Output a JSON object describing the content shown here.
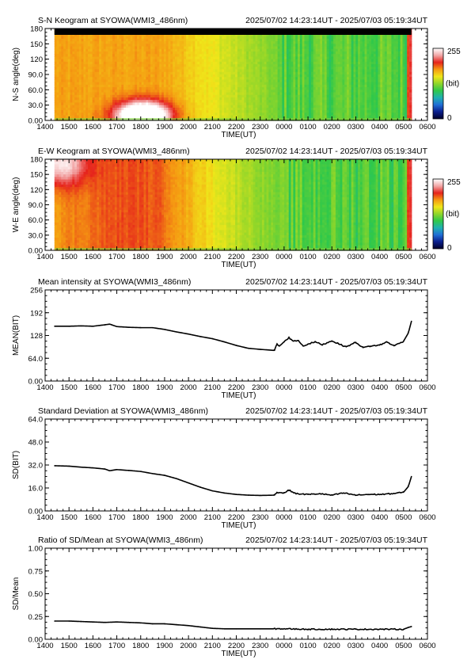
{
  "colors": {
    "background": "#ffffff",
    "axis": "#000000",
    "line": "#000000",
    "colormap": [
      "#00002a",
      "#0a1d8c",
      "#1f6ed6",
      "#1fb0b0",
      "#2fc84a",
      "#8fd62a",
      "#f0e61a",
      "#f59a12",
      "#e6231c",
      "#f2a6a6",
      "#ffffff"
    ]
  },
  "time_axis": {
    "xlabel": "TIME(UT)",
    "ticks": [
      "1400",
      "1500",
      "1600",
      "1700",
      "1800",
      "1900",
      "2000",
      "2100",
      "2200",
      "2300",
      "0000",
      "0100",
      "0200",
      "0300",
      "0400",
      "0500",
      "0600"
    ],
    "range_hours": [
      14,
      30
    ]
  },
  "colorbar": {
    "max": "255",
    "unit": "(bit)",
    "min": "0"
  },
  "chart_data": [
    {
      "type": "heatmap",
      "title": "S-N Keogram at SYOWA(WMI3_486nm)",
      "time_range": "2025/07/02 14:23:14UT - 2025/07/03 05:19:34UT",
      "ylabel": "N-S angle(deg)",
      "yticks": [
        "0.00",
        "30.0",
        "60.0",
        "90.0",
        "120",
        "150",
        "180"
      ],
      "ylim": [
        0,
        180
      ],
      "data_start_hour": 14.39,
      "data_end_hour": 29.33,
      "data_gap_hour": 23.7,
      "features": {
        "bright_blob": {
          "time_hour": 18.1,
          "angle_deg": 10,
          "peak_bit": 255
        },
        "band_minus": 0
      }
    },
    {
      "type": "heatmap",
      "title": "E-W Keogram at SYOWA(WMI3_486nm)",
      "time_range": "2025/07/02 14:23:14UT - 2025/07/03 05:19:34UT",
      "ylabel": "W-E angle(deg)",
      "yticks": [
        "0.00",
        "30.0",
        "60.0",
        "90.0",
        "120",
        "150",
        "180"
      ],
      "ylim": [
        0,
        180
      ],
      "data_start_hour": 14.39,
      "data_end_hour": 29.33,
      "data_gap_hour": 23.7
    },
    {
      "type": "line",
      "title": "Mean intensity at SYOWA(WMI3_486nm)",
      "time_range": "2025/07/02 14:23:14UT - 2025/07/03 05:19:34UT",
      "ylabel": "MEAN(BIT)",
      "yticks": [
        "0.00",
        "64.0",
        "128",
        "192",
        "256"
      ],
      "ylim": [
        0,
        256
      ],
      "x": [
        14.4,
        15.0,
        15.5,
        16.0,
        16.5,
        16.7,
        17.0,
        17.5,
        18.0,
        18.5,
        19.0,
        19.5,
        20.0,
        20.5,
        21.0,
        21.5,
        22.0,
        22.5,
        23.0,
        23.6,
        23.7,
        23.8,
        24.0,
        24.2,
        24.4,
        24.6,
        24.8,
        25.0,
        25.3,
        25.6,
        26.0,
        26.3,
        26.6,
        27.0,
        27.3,
        27.6,
        28.0,
        28.3,
        28.6,
        29.0,
        29.2,
        29.33
      ],
      "y": [
        154,
        154,
        155,
        154,
        158,
        160,
        153,
        151,
        150,
        150,
        145,
        138,
        132,
        125,
        119,
        110,
        100,
        92,
        89,
        86,
        104,
        98,
        110,
        122,
        112,
        114,
        98,
        104,
        110,
        102,
        113,
        104,
        96,
        109,
        94,
        98,
        101,
        110,
        99,
        112,
        135,
        168
      ]
    },
    {
      "type": "line",
      "title": "Standard Deviation at SYOWA(WMI3_486nm)",
      "time_range": "2025/07/02 14:23:14UT - 2025/07/03 05:19:34UT",
      "ylabel": "SD(BIT)",
      "yticks": [
        "0.00",
        "16.0",
        "32.0",
        "48.0",
        "64.0"
      ],
      "ylim": [
        0,
        64
      ],
      "x": [
        14.4,
        15.0,
        15.5,
        16.0,
        16.5,
        16.7,
        17.0,
        17.5,
        18.0,
        18.5,
        19.0,
        19.5,
        20.0,
        20.5,
        21.0,
        21.5,
        22.0,
        22.5,
        23.0,
        23.6,
        23.7,
        24.0,
        24.2,
        24.5,
        25.0,
        25.5,
        26.0,
        26.5,
        27.0,
        27.5,
        28.0,
        28.5,
        29.0,
        29.2,
        29.33
      ],
      "y": [
        31.5,
        31.2,
        30.5,
        30.0,
        29.2,
        28.0,
        28.8,
        28.2,
        27.5,
        26.0,
        24.8,
        22.5,
        19.5,
        16.5,
        14.0,
        12.5,
        11.5,
        11.0,
        10.8,
        11.0,
        13.0,
        12.5,
        14.5,
        12.0,
        11.5,
        12.0,
        11.0,
        12.5,
        11.0,
        11.5,
        11.5,
        12.0,
        13.0,
        17.0,
        24.0
      ]
    },
    {
      "type": "line",
      "title": "Ratio of SD/Mean at SYOWA(WMI3_486nm)",
      "time_range": "2025/07/02 14:23:14UT - 2025/07/03 05:19:34UT",
      "ylabel": "SD/Mean",
      "yticks": [
        "0.00",
        "0.25",
        "0.50",
        "0.75",
        "1.00"
      ],
      "ylim": [
        0,
        1.0
      ],
      "x": [
        14.4,
        15.0,
        15.5,
        16.0,
        16.5,
        17.0,
        17.5,
        18.0,
        18.5,
        19.0,
        19.5,
        20.0,
        20.5,
        21.0,
        21.5,
        22.0,
        23.0,
        24.0,
        25.0,
        26.0,
        27.0,
        28.0,
        29.0,
        29.2,
        29.33
      ],
      "y": [
        0.2,
        0.2,
        0.195,
        0.19,
        0.185,
        0.19,
        0.185,
        0.18,
        0.17,
        0.17,
        0.16,
        0.15,
        0.135,
        0.12,
        0.115,
        0.115,
        0.115,
        0.115,
        0.11,
        0.11,
        0.11,
        0.11,
        0.11,
        0.13,
        0.14
      ]
    }
  ]
}
